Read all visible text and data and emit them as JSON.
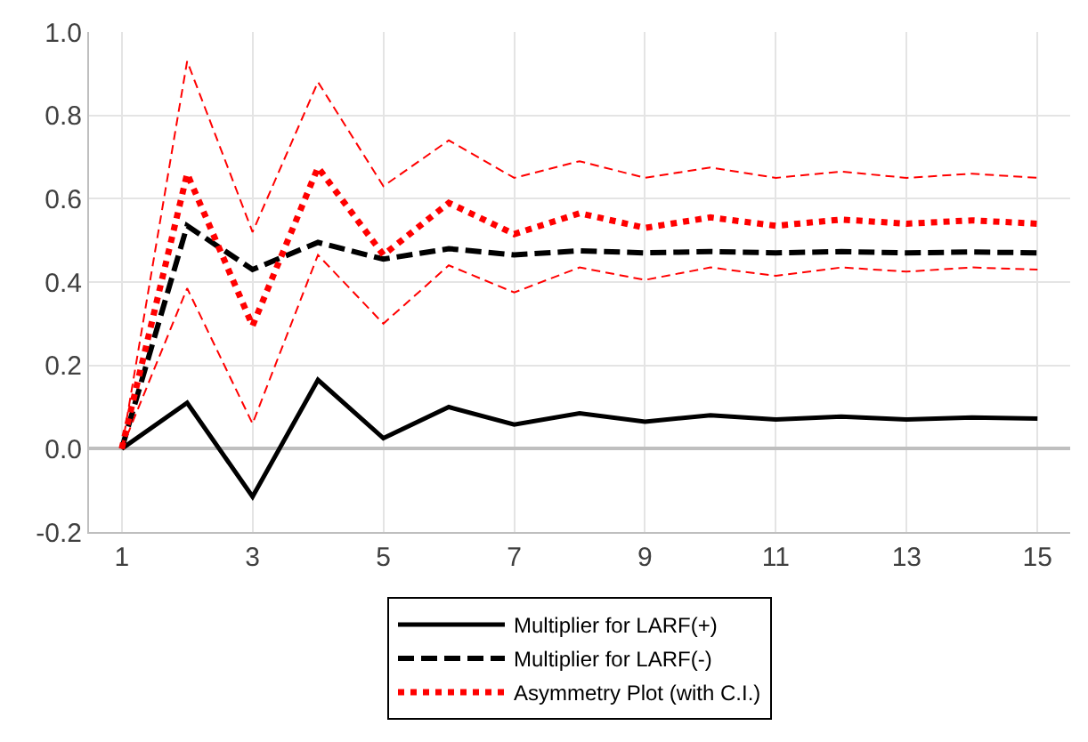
{
  "chart_data": {
    "type": "line",
    "x": [
      1,
      2,
      3,
      4,
      5,
      6,
      7,
      8,
      9,
      10,
      11,
      12,
      13,
      14,
      15
    ],
    "series": [
      {
        "name": "Multiplier for LARF(+)",
        "color": "#000000",
        "line_style": "solid",
        "values": [
          0,
          0.11,
          -0.115,
          0.165,
          0.025,
          0.1,
          0.058,
          0.085,
          0.065,
          0.08,
          0.07,
          0.077,
          0.07,
          0.075,
          0.072
        ]
      },
      {
        "name": "Multiplier for LARF(-)",
        "color": "#000000",
        "line_style": "dashed",
        "values": [
          0,
          0.535,
          0.43,
          0.495,
          0.455,
          0.48,
          0.465,
          0.475,
          0.47,
          0.473,
          0.47,
          0.473,
          0.47,
          0.472,
          0.47
        ]
      },
      {
        "name": "Asymmetry Plot (with C.I.)",
        "color": "#ff0000",
        "line_style": "dotted",
        "values": [
          0,
          0.66,
          0.295,
          0.675,
          0.465,
          0.59,
          0.515,
          0.565,
          0.53,
          0.555,
          0.535,
          0.55,
          0.54,
          0.548,
          0.54
        ]
      },
      {
        "color": "#ff0000",
        "line_style": "dashed",
        "values": [
          0,
          0.93,
          0.52,
          0.88,
          0.63,
          0.74,
          0.65,
          0.69,
          0.65,
          0.675,
          0.65,
          0.665,
          0.65,
          0.66,
          0.65
        ]
      },
      {
        "color": "#ff0000",
        "line_style": "dashed",
        "values": [
          0,
          0.385,
          0.06,
          0.465,
          0.3,
          0.44,
          0.375,
          0.435,
          0.405,
          0.435,
          0.415,
          0.435,
          0.425,
          0.435,
          0.43
        ]
      }
    ],
    "xlim": [
      0.5,
      15.5
    ],
    "xticks": [
      1,
      3,
      5,
      7,
      9,
      11,
      13,
      15
    ],
    "ylim": [
      -0.2,
      1.0
    ],
    "yticks": [
      {
        "value": -0.2,
        "label": "-0.2"
      },
      {
        "value": 0,
        "label": "0.0"
      },
      {
        "value": 0.2,
        "label": "0.2"
      },
      {
        "value": 0.4,
        "label": "0.4"
      },
      {
        "value": 0.6,
        "label": "0.6"
      },
      {
        "value": 0.8,
        "label": "0.8"
      },
      {
        "value": 1.0,
        "label": "1.0"
      }
    ],
    "grid": true,
    "legend": "bottom",
    "marker": "none"
  }
}
